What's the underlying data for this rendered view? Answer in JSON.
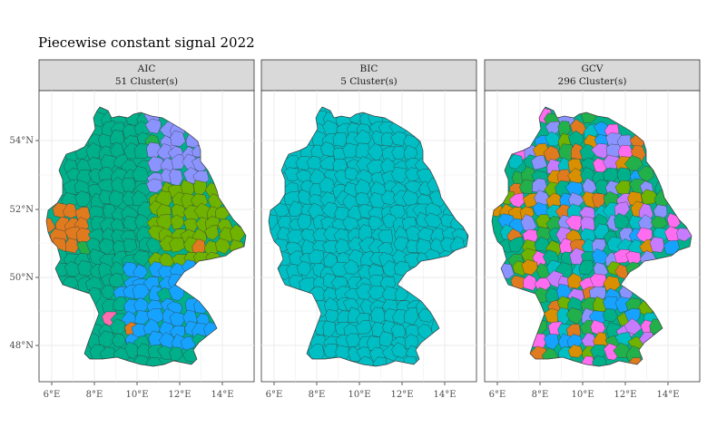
{
  "title": "Piecewise constant signal 2022",
  "panels": [
    {
      "method": "AIC",
      "clusters": "51 Cluster(s)",
      "palette": [
        "#00b08a",
        "#00b08a",
        "#00b08a",
        "#8b93ff",
        "#6fb200",
        "#16a3ff",
        "#e07a1f",
        "#ff6cb0",
        "#00b08a",
        "#22b04a"
      ],
      "seed": 11
    },
    {
      "method": "BIC",
      "clusters": "5 Cluster(s)",
      "palette": [
        "#00bfc4"
      ],
      "seed": 7
    },
    {
      "method": "GCV",
      "clusters": "296 Cluster(s)",
      "palette": [
        "#00b08a",
        "#ff6cf0",
        "#16a3ff",
        "#6fb200",
        "#c77cff",
        "#e07a1f",
        "#22b04a",
        "#00bfc4",
        "#8b93ff",
        "#d89000"
      ],
      "seed": 3
    }
  ],
  "x_ticks": [
    "6°E",
    "8°E",
    "10°E",
    "12°E",
    "14°E"
  ],
  "y_ticks": [
    "54°N",
    "52°N",
    "50°N",
    "48°N"
  ],
  "colors": {
    "strip_bg": "#d9d9d9",
    "border": "#333333",
    "grid": "#ebebeb",
    "region_edge": "#3a3a3a"
  }
}
